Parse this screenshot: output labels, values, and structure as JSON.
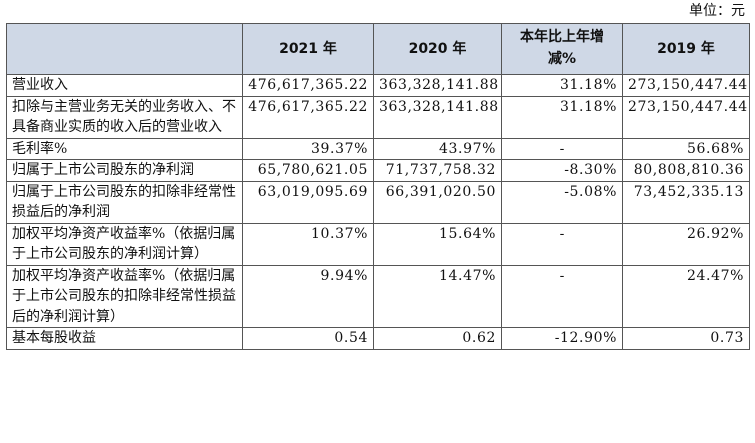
{
  "unit_label": "单位：元",
  "headers": [
    "",
    "2021 年",
    "2020 年",
    "本年比上年增减%",
    "2019 年"
  ],
  "rows": [
    {
      "label": "营业收入",
      "v2021": "476,617,365.22",
      "v2020": "363,328,141.88",
      "change": "31.18%",
      "v2019": "273,150,447.44"
    },
    {
      "label": "扣除与主营业务无关的业务收入、不具备商业实质的收入后的营业收入",
      "v2021": "476,617,365.22",
      "v2020": "363,328,141.88",
      "change": "31.18%",
      "v2019": "273,150,447.44"
    },
    {
      "label": "毛利率%",
      "v2021": "39.37%",
      "v2020": "43.97%",
      "change": "-",
      "v2019": "56.68%"
    },
    {
      "label": "归属于上市公司股东的净利润",
      "v2021": "65,780,621.05",
      "v2020": "71,737,758.32",
      "change": "-8.30%",
      "v2019": "80,808,810.36"
    },
    {
      "label": "归属于上市公司股东的扣除非经常性损益后的净利润",
      "v2021": "63,019,095.69",
      "v2020": "66,391,020.50",
      "change": "-5.08%",
      "v2019": "73,452,335.13"
    },
    {
      "label": "加权平均净资产收益率%（依据归属于上市公司股东的净利润计算）",
      "v2021": "10.37%",
      "v2020": "15.64%",
      "change": "-",
      "v2019": "26.92%"
    },
    {
      "label": "加权平均净资产收益率%（依据归属于上市公司股东的扣除非经常性损益后的净利润计算）",
      "v2021": "9.94%",
      "v2020": "14.47%",
      "change": "-",
      "v2019": "24.47%"
    },
    {
      "label": "基本每股收益",
      "v2021": "0.54",
      "v2020": "0.62",
      "change": "-12.90%",
      "v2019": "0.73"
    }
  ]
}
